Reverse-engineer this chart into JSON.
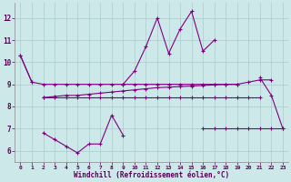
{
  "x": [
    0,
    1,
    2,
    3,
    4,
    5,
    6,
    7,
    8,
    9,
    10,
    11,
    12,
    13,
    14,
    15,
    16,
    17,
    18,
    19,
    20,
    21,
    22,
    23
  ],
  "color": "#800080",
  "bg_color": "#cce8e8",
  "grid_color": "#aacccc",
  "xlabel": "Windchill (Refroidissement éolien,°C)",
  "ylim": [
    5.5,
    12.7
  ],
  "xlim": [
    -0.5,
    23.5
  ],
  "yticks": [
    6,
    7,
    8,
    9,
    10,
    11,
    12
  ],
  "xticks": [
    0,
    1,
    2,
    3,
    4,
    5,
    6,
    7,
    8,
    9,
    10,
    11,
    12,
    13,
    14,
    15,
    16,
    17,
    18,
    19,
    20,
    21,
    22,
    23
  ],
  "line_jagged_top": [
    10.3,
    9.1,
    null,
    null,
    null,
    null,
    null,
    null,
    null,
    9.0,
    9.6,
    10.7,
    12.0,
    10.4,
    11.5,
    12.3,
    10.5,
    11.0,
    null,
    null,
    null,
    9.3,
    8.5,
    7.0
  ],
  "line_flat_top": [
    10.3,
    9.1,
    9.0,
    9.0,
    9.0,
    9.0,
    9.0,
    9.0,
    9.0,
    9.0,
    9.0,
    9.0,
    9.0,
    9.0,
    9.0,
    9.0,
    9.0,
    9.0,
    9.0,
    9.0,
    9.1,
    9.2,
    9.2,
    null
  ],
  "line_flat_mid": [
    null,
    null,
    8.4,
    8.4,
    8.4,
    8.4,
    8.4,
    8.4,
    8.4,
    8.4,
    8.4,
    8.4,
    8.4,
    8.4,
    8.4,
    8.4,
    8.4,
    8.4,
    8.4,
    8.4,
    8.4,
    8.4,
    null,
    null
  ],
  "line_rising_mid": [
    null,
    null,
    8.4,
    8.45,
    8.5,
    8.5,
    8.55,
    8.6,
    8.65,
    8.7,
    8.75,
    8.8,
    8.85,
    8.87,
    8.9,
    8.92,
    8.95,
    8.97,
    9.0,
    9.0,
    null,
    null,
    null,
    null
  ],
  "line_flat_bot": [
    null,
    null,
    null,
    null,
    null,
    null,
    null,
    null,
    null,
    null,
    null,
    null,
    null,
    null,
    null,
    null,
    7.0,
    7.0,
    7.0,
    7.0,
    7.0,
    7.0,
    7.0,
    7.0
  ],
  "line_jagged_bot": [
    null,
    null,
    6.8,
    6.5,
    6.2,
    5.9,
    6.3,
    6.3,
    7.6,
    6.7,
    null,
    null,
    null,
    null,
    null,
    null,
    null,
    null,
    null,
    null,
    null,
    null,
    null,
    null
  ]
}
